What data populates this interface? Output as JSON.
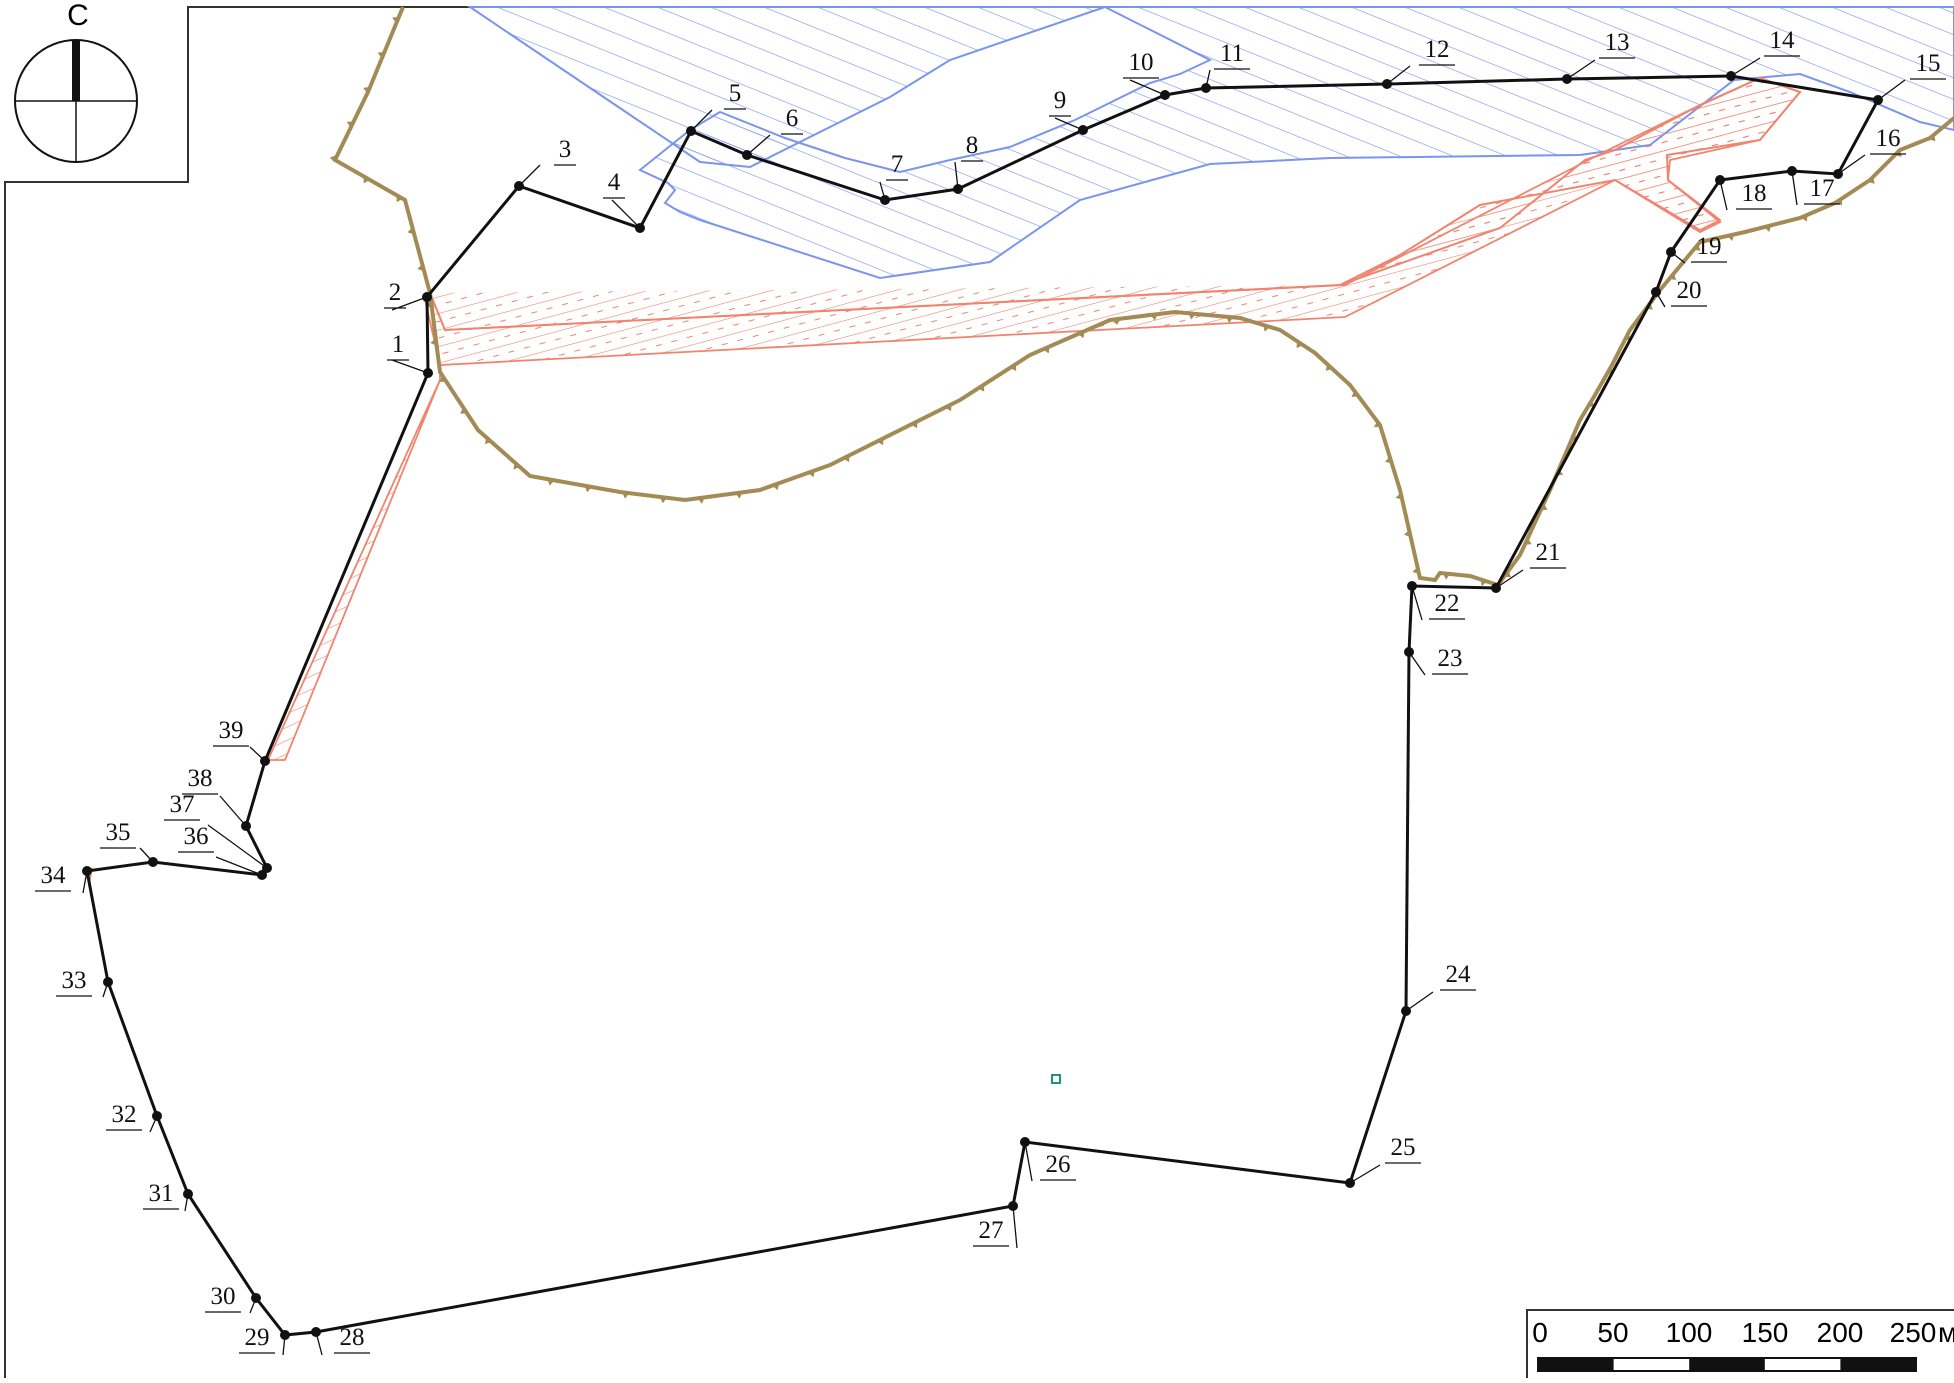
{
  "north_arrow": {
    "letter": "С"
  },
  "boundary_points": [
    "1",
    "2",
    "3",
    "4",
    "5",
    "6",
    "7",
    "8",
    "9",
    "10",
    "11",
    "12",
    "13",
    "14",
    "15",
    "16",
    "17",
    "18",
    "19",
    "20",
    "21",
    "22",
    "23",
    "24",
    "25",
    "26",
    "27",
    "28",
    "29",
    "30",
    "31",
    "32",
    "33",
    "34",
    "35",
    "36",
    "37",
    "38",
    "39"
  ],
  "scale_bar": {
    "ticks": [
      "0",
      "50",
      "100",
      "150",
      "200",
      "250"
    ],
    "unit": "м"
  },
  "colors": {
    "boundary": "#111111",
    "water_zone": "#7a94f0",
    "protection_zone": "#f0846e",
    "terrain_edge": "#a38b55",
    "marker": "#1a9a6a"
  }
}
